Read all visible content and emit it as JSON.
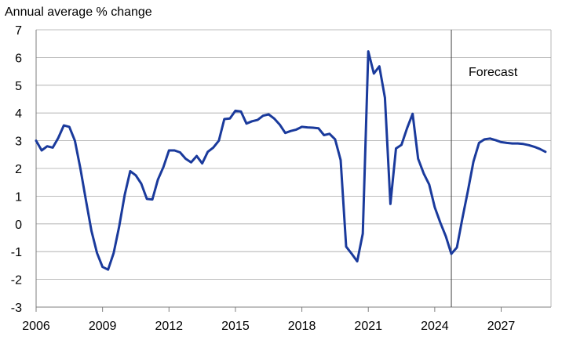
{
  "chart_data": {
    "type": "line",
    "ylabel": "Annual average % change",
    "ylim": [
      -3,
      7
    ],
    "yticks": [
      7,
      6,
      5,
      4,
      3,
      2,
      1,
      0,
      -1,
      -2,
      -3
    ],
    "xlim": [
      2006,
      2029.25
    ],
    "xticks": [
      2006,
      2009,
      2012,
      2015,
      2018,
      2021,
      2024,
      2027
    ],
    "grid": true,
    "forecast_marker": {
      "x": 2024.75,
      "label": "Forecast"
    },
    "series_color": "#1a3a9c",
    "series": [
      {
        "values": [
          [
            2006.0,
            3.0
          ],
          [
            2006.25,
            2.65
          ],
          [
            2006.5,
            2.8
          ],
          [
            2006.75,
            2.75
          ],
          [
            2007.0,
            3.1
          ],
          [
            2007.25,
            3.55
          ],
          [
            2007.5,
            3.5
          ],
          [
            2007.75,
            3.0
          ],
          [
            2008.0,
            2.0
          ],
          [
            2008.25,
            0.85
          ],
          [
            2008.5,
            -0.25
          ],
          [
            2008.75,
            -1.05
          ],
          [
            2009.0,
            -1.55
          ],
          [
            2009.25,
            -1.65
          ],
          [
            2009.5,
            -1.05
          ],
          [
            2009.75,
            -0.1
          ],
          [
            2010.0,
            1.05
          ],
          [
            2010.25,
            1.9
          ],
          [
            2010.5,
            1.75
          ],
          [
            2010.75,
            1.45
          ],
          [
            2011.0,
            0.9
          ],
          [
            2011.25,
            0.88
          ],
          [
            2011.5,
            1.6
          ],
          [
            2011.75,
            2.05
          ],
          [
            2012.0,
            2.65
          ],
          [
            2012.25,
            2.65
          ],
          [
            2012.5,
            2.58
          ],
          [
            2012.75,
            2.35
          ],
          [
            2013.0,
            2.22
          ],
          [
            2013.25,
            2.45
          ],
          [
            2013.5,
            2.18
          ],
          [
            2013.75,
            2.6
          ],
          [
            2014.0,
            2.75
          ],
          [
            2014.25,
            3.0
          ],
          [
            2014.5,
            3.78
          ],
          [
            2014.75,
            3.8
          ],
          [
            2015.0,
            4.08
          ],
          [
            2015.25,
            4.05
          ],
          [
            2015.5,
            3.62
          ],
          [
            2015.75,
            3.7
          ],
          [
            2016.0,
            3.75
          ],
          [
            2016.25,
            3.9
          ],
          [
            2016.5,
            3.95
          ],
          [
            2016.75,
            3.8
          ],
          [
            2017.0,
            3.58
          ],
          [
            2017.25,
            3.28
          ],
          [
            2017.5,
            3.35
          ],
          [
            2017.75,
            3.4
          ],
          [
            2018.0,
            3.5
          ],
          [
            2018.25,
            3.48
          ],
          [
            2018.5,
            3.47
          ],
          [
            2018.75,
            3.45
          ],
          [
            2019.0,
            3.2
          ],
          [
            2019.25,
            3.25
          ],
          [
            2019.5,
            3.05
          ],
          [
            2019.75,
            2.3
          ],
          [
            2020.0,
            -0.82
          ],
          [
            2020.25,
            -1.08
          ],
          [
            2020.5,
            -1.35
          ],
          [
            2020.75,
            -0.35
          ],
          [
            2021.0,
            6.22
          ],
          [
            2021.25,
            5.42
          ],
          [
            2021.5,
            5.68
          ],
          [
            2021.75,
            4.55
          ],
          [
            2022.0,
            0.72
          ],
          [
            2022.25,
            2.72
          ],
          [
            2022.5,
            2.85
          ],
          [
            2022.75,
            3.45
          ],
          [
            2023.0,
            3.97
          ],
          [
            2023.25,
            2.35
          ],
          [
            2023.5,
            1.82
          ],
          [
            2023.75,
            1.42
          ],
          [
            2024.0,
            0.6
          ],
          [
            2024.25,
            0.05
          ],
          [
            2024.5,
            -0.45
          ],
          [
            2024.75,
            -1.08
          ],
          [
            2025.0,
            -0.85
          ],
          [
            2025.25,
            0.2
          ],
          [
            2025.5,
            1.2
          ],
          [
            2025.75,
            2.25
          ],
          [
            2026.0,
            2.92
          ],
          [
            2026.25,
            3.05
          ],
          [
            2026.5,
            3.08
          ],
          [
            2026.75,
            3.02
          ],
          [
            2027.0,
            2.95
          ],
          [
            2027.25,
            2.92
          ],
          [
            2027.5,
            2.9
          ],
          [
            2027.75,
            2.9
          ],
          [
            2028.0,
            2.88
          ],
          [
            2028.25,
            2.84
          ],
          [
            2028.5,
            2.78
          ],
          [
            2028.75,
            2.7
          ],
          [
            2029.0,
            2.6
          ]
        ]
      }
    ]
  }
}
